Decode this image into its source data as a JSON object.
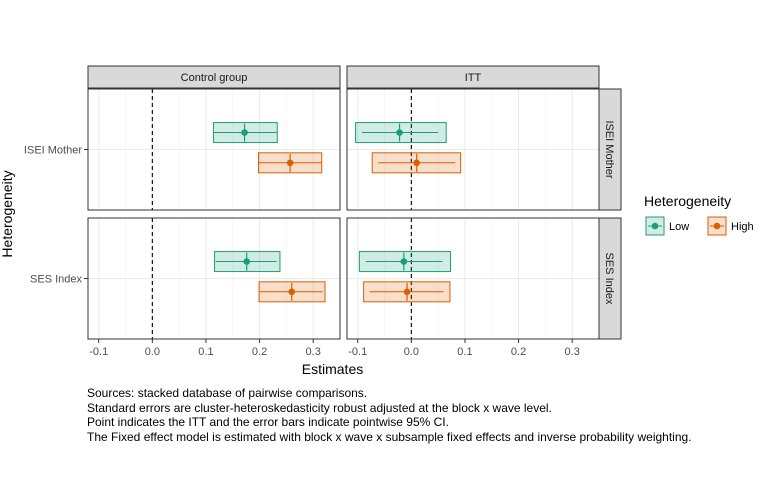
{
  "chart_data": {
    "type": "forest",
    "xlabel": "Estimates",
    "ylabel": "Heterogeneity",
    "xlim": [
      -0.12,
      0.35
    ],
    "xticks": [
      -0.1,
      0.0,
      0.1,
      0.2,
      0.3
    ],
    "xtick_labels": [
      "-0.1",
      "0.0",
      "0.1",
      "0.2",
      "0.3"
    ],
    "reference_line": 0,
    "grid": true,
    "columns": [
      "Control group",
      "ITT"
    ],
    "rows": [
      {
        "strip": "ISEI Mother",
        "ylabel": "ISEI Mother"
      },
      {
        "strip": "SES Index",
        "ylabel": "SES Index"
      }
    ],
    "legend": {
      "title": "Heterogeneity",
      "placement": "right",
      "entries": [
        {
          "label": "Low",
          "color": "#1b9e77"
        },
        {
          "label": "High",
          "color": "#d95f02"
        }
      ]
    },
    "series": [
      {
        "name": "Low",
        "color": "#1b9e77"
      },
      {
        "name": "High",
        "color": "#d95f02"
      }
    ],
    "panels": [
      {
        "row": 0,
        "col": 0,
        "points": [
          {
            "series": "Low",
            "estimate": 0.172,
            "ci_low": 0.115,
            "ci_high": 0.232,
            "ci90_low": 0.114,
            "ci90_high": 0.233
          },
          {
            "series": "High",
            "estimate": 0.257,
            "ci_low": 0.198,
            "ci_high": 0.316,
            "ci90_low": 0.198,
            "ci90_high": 0.316
          }
        ]
      },
      {
        "row": 0,
        "col": 1,
        "points": [
          {
            "series": "Low",
            "estimate": -0.022,
            "ci_low": -0.092,
            "ci_high": 0.05,
            "ci90_low": -0.104,
            "ci90_high": 0.065
          },
          {
            "series": "High",
            "estimate": 0.01,
            "ci_low": -0.062,
            "ci_high": 0.082,
            "ci90_low": -0.073,
            "ci90_high": 0.092
          }
        ]
      },
      {
        "row": 1,
        "col": 0,
        "points": [
          {
            "series": "Low",
            "estimate": 0.176,
            "ci_low": 0.118,
            "ci_high": 0.232,
            "ci90_low": 0.116,
            "ci90_high": 0.238
          },
          {
            "series": "High",
            "estimate": 0.26,
            "ci_low": 0.2,
            "ci_high": 0.318,
            "ci90_low": 0.199,
            "ci90_high": 0.322
          }
        ]
      },
      {
        "row": 1,
        "col": 1,
        "points": [
          {
            "series": "Low",
            "estimate": -0.014,
            "ci_low": -0.085,
            "ci_high": 0.058,
            "ci90_low": -0.097,
            "ci90_high": 0.073
          },
          {
            "series": "High",
            "estimate": -0.008,
            "ci_low": -0.078,
            "ci_high": 0.06,
            "ci90_low": -0.089,
            "ci90_high": 0.072
          }
        ]
      }
    ]
  },
  "caption": {
    "lines": [
      "Sources: stacked database of pairwise comparisons.",
      "Standard errors are cluster-heteroskedasticity robust adjusted at the block x wave level.",
      "Point indicates the ITT and the error bars indicate pointwise 95% CI.",
      "The Fixed effect model is estimated with block x wave x subsample fixed effects and inverse probability weighting."
    ]
  }
}
